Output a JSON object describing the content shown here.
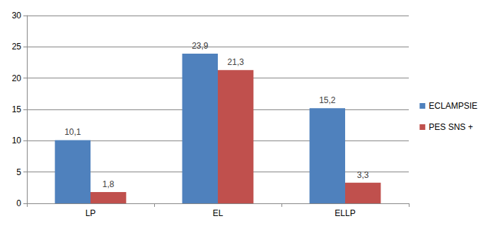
{
  "chart_data": {
    "type": "bar",
    "categories": [
      "LP",
      "EL",
      "ELLP"
    ],
    "series": [
      {
        "name": "ECLAMPSIE",
        "color": "#4f81bd",
        "values": [
          10.1,
          23.9,
          15.2
        ],
        "value_labels": [
          "10,1",
          "23,9",
          "15,2"
        ]
      },
      {
        "name": "PES SNS +",
        "color": "#c0504d",
        "values": [
          1.8,
          21.3,
          3.3
        ],
        "value_labels": [
          "1,8",
          "21,3",
          "3,3"
        ]
      }
    ],
    "ylim": [
      0,
      30
    ],
    "yticks": [
      0,
      5,
      10,
      15,
      20,
      25,
      30
    ],
    "grid": true,
    "legend": "right",
    "data_labels": true
  }
}
